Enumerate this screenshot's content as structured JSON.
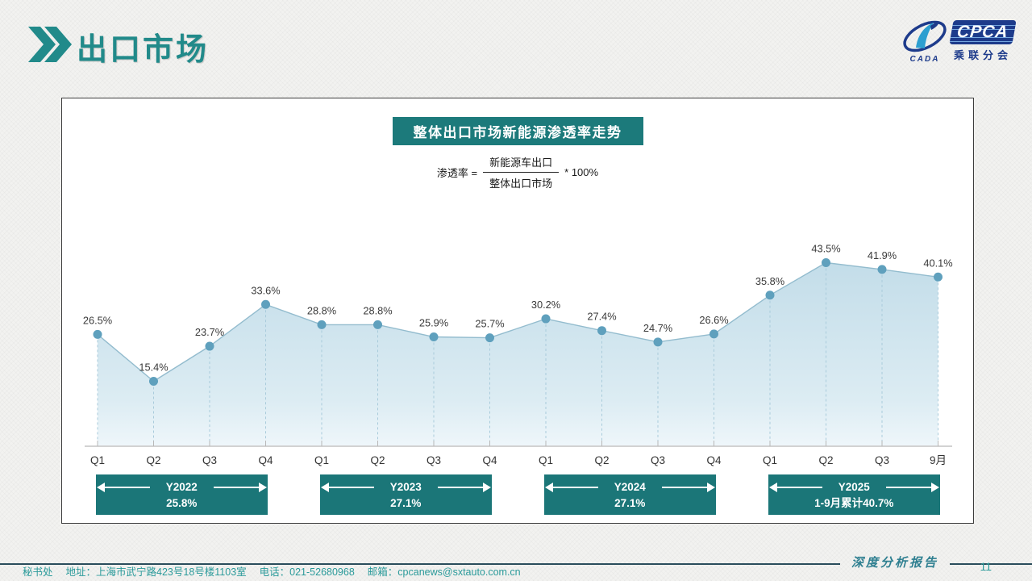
{
  "header": {
    "title": "出口市场",
    "chevron_icon": "double-chevron-right",
    "logo": {
      "name": "CPCA",
      "sub": "乘联分会",
      "emblem_text": "CADA"
    }
  },
  "panel": {
    "title": "整体出口市场新能源渗透率走势",
    "formula": {
      "lhs": "渗透率 =",
      "numerator": "新能源车出口",
      "denominator": "整体出口市场",
      "rhs": "* 100%"
    }
  },
  "chart_data": {
    "type": "area",
    "title": "整体出口市场新能源渗透率走势",
    "categories": [
      "Q1",
      "Q2",
      "Q3",
      "Q4",
      "Q1",
      "Q2",
      "Q3",
      "Q4",
      "Q1",
      "Q2",
      "Q3",
      "Q4",
      "Q1",
      "Q2",
      "Q3",
      "9月"
    ],
    "values": [
      26.5,
      15.4,
      23.7,
      33.6,
      28.8,
      28.8,
      25.9,
      25.7,
      30.2,
      27.4,
      24.7,
      26.6,
      35.8,
      43.5,
      41.9,
      40.1
    ],
    "unit": "%",
    "ylim": [
      0,
      50
    ],
    "grid": false,
    "legend": "none",
    "groups": [
      {
        "label": "Y2022",
        "sub": "25.8%",
        "from": 0,
        "to": 3
      },
      {
        "label": "Y2023",
        "sub": "27.1%",
        "from": 4,
        "to": 7
      },
      {
        "label": "Y2024",
        "sub": "27.1%",
        "from": 8,
        "to": 11
      },
      {
        "label": "Y2025",
        "sub": "1-9月累计40.7%",
        "from": 12,
        "to": 15
      }
    ],
    "colors": {
      "marker": "#5fa0bd",
      "line": "#93bcce",
      "dash": "#a9cbdb",
      "area_top": "#c3dde9",
      "area_bottom": "#eef6fa",
      "axis": "#a6a6a6",
      "tick": "#b8b8b8",
      "label": "#3a3a3a",
      "banner": "#1b7678",
      "accent_teal": "#1c7a7b",
      "logo_blue": "#1d3b8b"
    }
  },
  "footer": {
    "report_label": "深度分析报告",
    "page_number": "11",
    "contact_parts": [
      "秘书处",
      "地址：上海市武宁路423号18号楼1103室",
      "电话：021-52680968",
      "邮箱：cpcanews@sxtauto.com.cn"
    ]
  }
}
